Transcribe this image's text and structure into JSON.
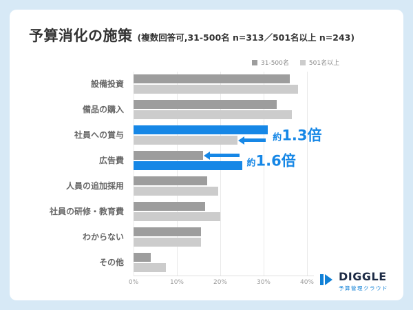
{
  "card": {
    "title": "予算消化の施策",
    "subtitle": "(複数回答可,31-500名 n=313／501名以上 n=243)"
  },
  "chart_data": {
    "type": "bar",
    "orientation": "horizontal",
    "title": "予算消化の施策",
    "categories": [
      "設備投資",
      "備品の購入",
      "社員への賞与",
      "広告費",
      "人員の追加採用",
      "社員の研修・教育費",
      "わからない",
      "その他"
    ],
    "series": [
      {
        "name": "31-500名",
        "color": "#9d9d9d",
        "values": [
          36,
          33,
          31,
          16,
          17,
          16.5,
          15.5,
          4
        ]
      },
      {
        "name": "501名以上",
        "color": "#cccccc",
        "values": [
          38,
          36.5,
          24,
          25,
          19.5,
          20,
          15.5,
          7.5
        ]
      }
    ],
    "highlights": [
      {
        "category": "社員への賞与",
        "series": 0,
        "color": "#1687e6",
        "label_small": "約",
        "label_big": "1.3倍"
      },
      {
        "category": "広告費",
        "series": 1,
        "color": "#1687e6",
        "label_small": "約",
        "label_big": "1.6倍"
      }
    ],
    "x_ticks": [
      "0%",
      "10%",
      "20%",
      "30%",
      "40%"
    ],
    "xlim": [
      0,
      40
    ],
    "grid": "vertical",
    "legend_position": "top-right"
  },
  "footer": {
    "brand": "DIGGLE",
    "brand_sub": "予算管理クラウド"
  }
}
